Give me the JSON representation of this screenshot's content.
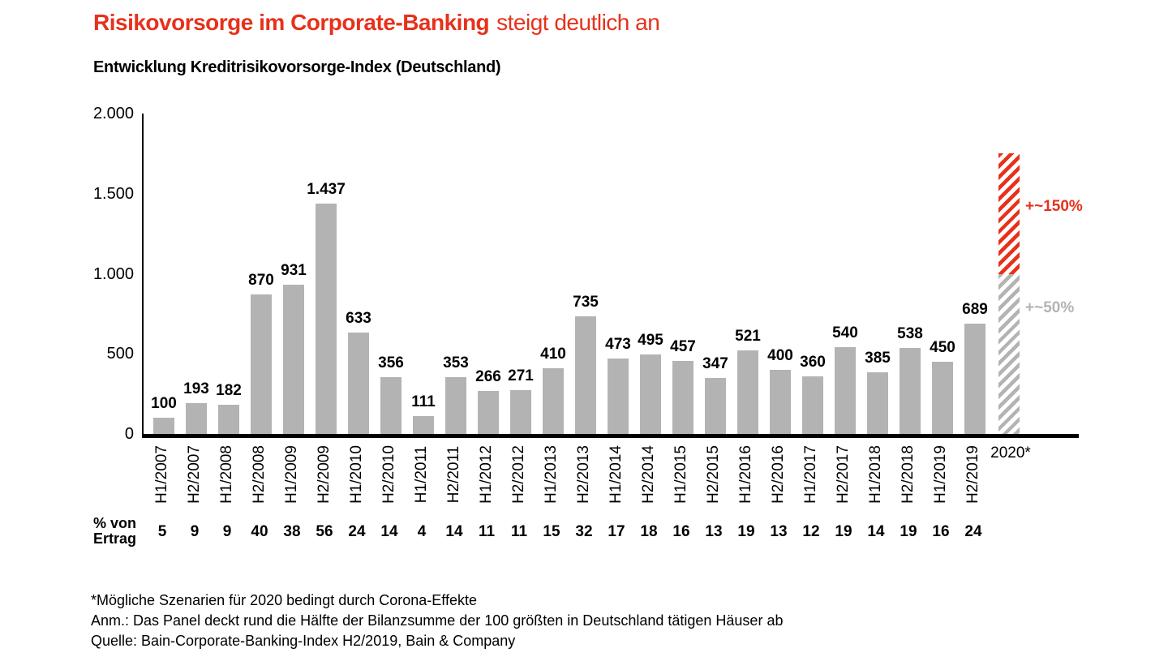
{
  "title": {
    "emphasis": "Risikovorsorge im Corporate-Banking",
    "rest": "steigt deutlich an"
  },
  "subtitle": "Entwicklung Kreditrisikovorsorge-Index (Deutschland)",
  "colors": {
    "accent_red": "#e7311b",
    "bar_gray": "#b3b3b3",
    "axis_black": "#000000",
    "background": "#ffffff"
  },
  "chart_data": {
    "type": "bar",
    "title": "Entwicklung Kreditrisikovorsorge-Index (Deutschland)",
    "xlabel": "",
    "ylabel": "",
    "ylim": [
      0,
      2000
    ],
    "grid": false,
    "legend": null,
    "ytick_values": [
      0,
      500,
      1000,
      1500,
      2000
    ],
    "ytick_labels": [
      "0",
      "500",
      "1.000",
      "1.500",
      "2.000"
    ],
    "categories": [
      "H1/2007",
      "H2/2007",
      "H1/2008",
      "H2/2008",
      "H1/2009",
      "H2/2009",
      "H1/2010",
      "H2/2010",
      "H1/2011",
      "H2/2011",
      "H1/2012",
      "H2/2012",
      "H1/2013",
      "H2/2013",
      "H1/2014",
      "H2/2014",
      "H1/2015",
      "H2/2015",
      "H1/2016",
      "H2/2016",
      "H1/2017",
      "H2/2017",
      "H1/2018",
      "H2/2018",
      "H1/2019",
      "H2/2019"
    ],
    "values": [
      100,
      193,
      182,
      870,
      931,
      1437,
      633,
      356,
      111,
      353,
      266,
      271,
      410,
      735,
      473,
      495,
      457,
      347,
      521,
      400,
      360,
      540,
      385,
      538,
      450,
      689
    ],
    "value_labels": [
      "100",
      "193",
      "182",
      "870",
      "931",
      "1.437",
      "633",
      "356",
      "111",
      "353",
      "266",
      "271",
      "410",
      "735",
      "473",
      "495",
      "457",
      "347",
      "521",
      "400",
      "360",
      "540",
      "385",
      "538",
      "450",
      "689"
    ],
    "percent_row": {
      "label_line1": "% von",
      "label_line2": "Ertrag",
      "values": [
        "5",
        "9",
        "9",
        "40",
        "38",
        "56",
        "24",
        "14",
        "4",
        "14",
        "11",
        "11",
        "15",
        "32",
        "17",
        "18",
        "16",
        "13",
        "19",
        "13",
        "12",
        "19",
        "14",
        "19",
        "16",
        "24"
      ]
    },
    "scenario_2020": {
      "category": "2020*",
      "segments": [
        {
          "label": "+~50%",
          "from": 0,
          "to": 1000,
          "style": "gray-hatch"
        },
        {
          "label": "+~150%",
          "from": 1000,
          "to": 1750,
          "style": "red-hatch"
        }
      ]
    }
  },
  "footnotes": [
    "*Mögliche Szenarien für 2020 bedingt durch Corona-Effekte",
    "Anm.: Das Panel deckt rund die Hälfte der Bilanzsumme der 100 größten in Deutschland tätigen Häuser ab",
    "Quelle: Bain-Corporate-Banking-Index H2/2019, Bain & Company"
  ]
}
